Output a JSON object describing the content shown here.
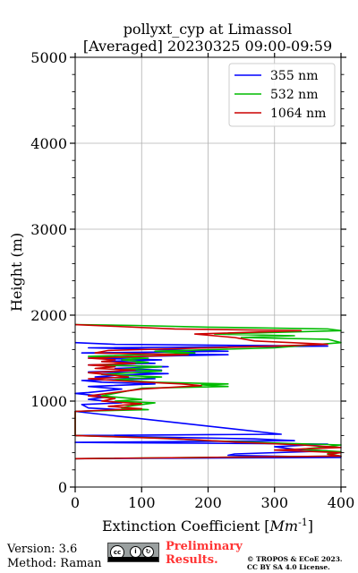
{
  "chart_data": {
    "type": "line",
    "title": "pollyxt_cyp at Limassol",
    "subtitle": "[Averaged] 20230325 09:00-09:59",
    "xlabel": "Extinction Coefficient [Mm^{-1}]",
    "ylabel": "Height (m)",
    "xlim": [
      0,
      400
    ],
    "ylim": [
      0,
      5000
    ],
    "xticks": [
      0,
      100,
      200,
      300,
      400
    ],
    "yticks": [
      0,
      1000,
      2000,
      3000,
      4000,
      5000
    ],
    "grid": true,
    "legend_position": "top-right",
    "series": [
      {
        "name": "355 nm",
        "color": "#0000ff",
        "points": [
          [
            0,
            330
          ],
          [
            400,
            345
          ],
          [
            230,
            370
          ],
          [
            240,
            385
          ],
          [
            380,
            420
          ],
          [
            330,
            440
          ],
          [
            300,
            470
          ],
          [
            380,
            500
          ],
          [
            0,
            520
          ],
          [
            330,
            540
          ],
          [
            270,
            560
          ],
          [
            130,
            580
          ],
          [
            0,
            600
          ],
          [
            310,
            615
          ],
          [
            0,
            880
          ],
          [
            70,
            900
          ],
          [
            20,
            920
          ],
          [
            10,
            960
          ],
          [
            70,
            980
          ],
          [
            20,
            1020
          ],
          [
            50,
            1050
          ],
          [
            0,
            1090
          ],
          [
            20,
            1100
          ],
          [
            70,
            1140
          ],
          [
            20,
            1170
          ],
          [
            120,
            1200
          ],
          [
            40,
            1220
          ],
          [
            10,
            1240
          ],
          [
            120,
            1260
          ],
          [
            30,
            1280
          ],
          [
            60,
            1300
          ],
          [
            140,
            1320
          ],
          [
            20,
            1340
          ],
          [
            130,
            1360
          ],
          [
            60,
            1380
          ],
          [
            140,
            1400
          ],
          [
            20,
            1420
          ],
          [
            120,
            1440
          ],
          [
            40,
            1460
          ],
          [
            130,
            1480
          ],
          [
            20,
            1500
          ],
          [
            100,
            1520
          ],
          [
            230,
            1540
          ],
          [
            10,
            1560
          ],
          [
            230,
            1580
          ],
          [
            130,
            1600
          ],
          [
            20,
            1620
          ],
          [
            380,
            1640
          ],
          [
            60,
            1660
          ],
          [
            0,
            1680
          ]
        ]
      },
      {
        "name": "532 nm",
        "color": "#00bb00",
        "points": [
          [
            0,
            330
          ],
          [
            400,
            360
          ],
          [
            380,
            390
          ],
          [
            400,
            410
          ],
          [
            340,
            440
          ],
          [
            380,
            470
          ],
          [
            400,
            490
          ],
          [
            310,
            510
          ],
          [
            200,
            540
          ],
          [
            130,
            570
          ],
          [
            0,
            600
          ],
          [
            0,
            880
          ],
          [
            110,
            900
          ],
          [
            70,
            920
          ],
          [
            80,
            940
          ],
          [
            120,
            980
          ],
          [
            60,
            1000
          ],
          [
            100,
            1020
          ],
          [
            40,
            1060
          ],
          [
            100,
            1150
          ],
          [
            230,
            1170
          ],
          [
            190,
            1190
          ],
          [
            230,
            1200
          ],
          [
            120,
            1220
          ],
          [
            60,
            1250
          ],
          [
            130,
            1280
          ],
          [
            40,
            1310
          ],
          [
            130,
            1350
          ],
          [
            70,
            1370
          ],
          [
            130,
            1400
          ],
          [
            40,
            1420
          ],
          [
            110,
            1450
          ],
          [
            70,
            1480
          ],
          [
            110,
            1500
          ],
          [
            20,
            1520
          ],
          [
            180,
            1560
          ],
          [
            120,
            1580
          ],
          [
            300,
            1620
          ],
          [
            400,
            1680
          ],
          [
            380,
            1720
          ],
          [
            250,
            1740
          ],
          [
            330,
            1760
          ],
          [
            210,
            1780
          ],
          [
            400,
            1820
          ],
          [
            380,
            1840
          ],
          [
            200,
            1860
          ],
          [
            90,
            1880
          ],
          [
            0,
            1890
          ]
        ]
      },
      {
        "name": "1064 nm",
        "color": "#cc0000",
        "points": [
          [
            0,
            330
          ],
          [
            400,
            360
          ],
          [
            380,
            380
          ],
          [
            400,
            400
          ],
          [
            300,
            430
          ],
          [
            400,
            460
          ],
          [
            340,
            490
          ],
          [
            250,
            520
          ],
          [
            180,
            550
          ],
          [
            120,
            570
          ],
          [
            0,
            600
          ],
          [
            0,
            880
          ],
          [
            100,
            910
          ],
          [
            50,
            940
          ],
          [
            100,
            970
          ],
          [
            40,
            1000
          ],
          [
            60,
            1030
          ],
          [
            20,
            1060
          ],
          [
            100,
            1140
          ],
          [
            190,
            1180
          ],
          [
            160,
            1200
          ],
          [
            80,
            1230
          ],
          [
            20,
            1260
          ],
          [
            80,
            1280
          ],
          [
            60,
            1300
          ],
          [
            20,
            1330
          ],
          [
            90,
            1360
          ],
          [
            30,
            1380
          ],
          [
            60,
            1400
          ],
          [
            20,
            1420
          ],
          [
            90,
            1440
          ],
          [
            40,
            1460
          ],
          [
            60,
            1480
          ],
          [
            20,
            1500
          ],
          [
            170,
            1540
          ],
          [
            30,
            1560
          ],
          [
            50,
            1590
          ],
          [
            300,
            1640
          ],
          [
            380,
            1660
          ],
          [
            270,
            1700
          ],
          [
            240,
            1740
          ],
          [
            180,
            1780
          ],
          [
            340,
            1820
          ],
          [
            150,
            1840
          ],
          [
            60,
            1870
          ],
          [
            0,
            1890
          ]
        ]
      }
    ]
  },
  "footer": {
    "version": "Version: 3.6",
    "method": "Method: Raman",
    "cc_label": "cc",
    "preliminary_line1": "Preliminary",
    "preliminary_line2": "Results.",
    "license_line1": "© TROPOS & ECoE 2023.",
    "license_line2": "CC BY SA 4.0 License."
  }
}
